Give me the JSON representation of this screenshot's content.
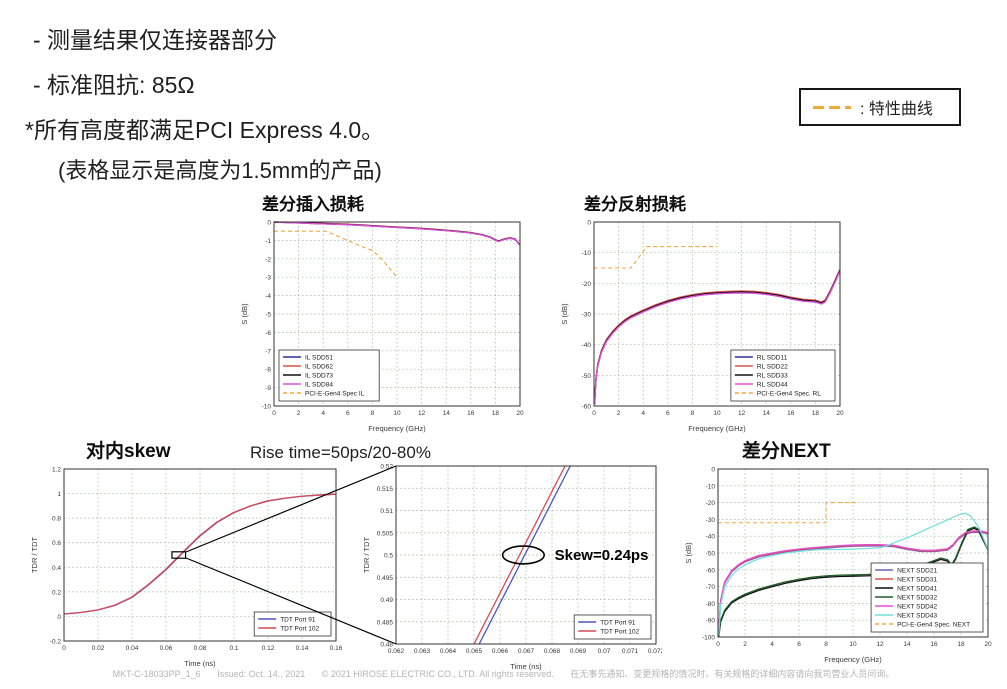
{
  "page": {
    "bullets": [
      "- 测量结果仅连接器部分",
      "- 标准阻抗: 85Ω",
      "*所有高度都满足PCI Express 4.0。",
      "(表格显示是高度为1.5mm的产品)"
    ]
  },
  "spec_legend": {
    "label": ": 特性曲线",
    "color": "#f0a73c"
  },
  "labels": {
    "rise_time": "Rise time=50ps/20-80%"
  },
  "footer": {
    "doc_id": "MKT-C-18033PP_1_6",
    "issued": "Issued: Oct. 14., 2021",
    "copyright": "© 2021 HIROSE ELECTRIC CO., LTD. All rights reserved.",
    "note_cn": "在无事先通知、变更规格的情况时、有关规格的详细内容请向我司营业人员问询。"
  },
  "chart_data": [
    {
      "id": "insertion-loss",
      "type": "line",
      "title": "差分插入损耗",
      "xlabel": "Frequency (GHz)",
      "ylabel": "S (dB)",
      "xlim": [
        0,
        20
      ],
      "ylim": [
        -10,
        0
      ],
      "xticks": [
        0,
        2,
        4,
        6,
        8,
        10,
        12,
        14,
        16,
        18,
        20
      ],
      "yticks": [
        0,
        -1,
        -2,
        -3,
        -4,
        -5,
        -6,
        -7,
        -8,
        -9,
        -10
      ],
      "grid": true,
      "legend_pos": "bl",
      "series": [
        {
          "name": "IL SDD51",
          "color": "#28318f",
          "points": [
            [
              0,
              0
            ],
            [
              1,
              -0.03
            ],
            [
              2,
              -0.05
            ],
            [
              3,
              -0.08
            ],
            [
              4,
              -0.1
            ],
            [
              5,
              -0.12
            ],
            [
              6,
              -0.15
            ],
            [
              7,
              -0.18
            ],
            [
              8,
              -0.22
            ],
            [
              9,
              -0.26
            ],
            [
              10,
              -0.3
            ],
            [
              11,
              -0.33
            ],
            [
              12,
              -0.37
            ],
            [
              13,
              -0.42
            ],
            [
              14,
              -0.47
            ],
            [
              15,
              -0.53
            ],
            [
              16,
              -0.6
            ],
            [
              17,
              -0.72
            ],
            [
              17.6,
              -0.85
            ],
            [
              18,
              -1.0
            ],
            [
              18.3,
              -1.05
            ],
            [
              18.7,
              -0.95
            ],
            [
              19.2,
              -0.88
            ],
            [
              19.6,
              -0.95
            ],
            [
              20,
              -1.27
            ]
          ]
        },
        {
          "name": "IL SDD62",
          "color": "#d9534a",
          "same_as": "IL SDD51",
          "dy": 0.03
        },
        {
          "name": "IL SDD73",
          "color": "#111111",
          "same_as": "IL SDD51",
          "dy": 0.015
        },
        {
          "name": "IL SDD84",
          "color": "#e04fd8",
          "same_as": "IL SDD51",
          "dy": 0
        },
        {
          "name": "PCI-E-Gen4 Spec IL",
          "color": "#f0a73c",
          "dash": "4,3",
          "points": [
            [
              0,
              -0.5
            ],
            [
              4.2,
              -0.5
            ],
            [
              5,
              -0.72
            ],
            [
              6,
              -1.0
            ],
            [
              7,
              -1.3
            ],
            [
              8,
              -1.55
            ],
            [
              8.5,
              -1.85
            ],
            [
              9,
              -2.2
            ],
            [
              9.5,
              -2.6
            ],
            [
              10,
              -3.0
            ]
          ]
        }
      ]
    },
    {
      "id": "return-loss",
      "type": "line",
      "title": "差分反射损耗",
      "xlabel": "Frequency (GHz)",
      "ylabel": "S (dB)",
      "xlim": [
        0,
        20
      ],
      "ylim": [
        -60,
        0
      ],
      "xticks": [
        0,
        2,
        4,
        6,
        8,
        10,
        12,
        14,
        16,
        18,
        20
      ],
      "yticks": [
        0,
        -10,
        -20,
        -30,
        -40,
        -50,
        -60
      ],
      "grid": true,
      "legend_pos": "br",
      "series": [
        {
          "name": "RL SDD11",
          "color": "#28318f",
          "points": [
            [
              0.05,
              -59.5
            ],
            [
              0.15,
              -52
            ],
            [
              0.3,
              -47
            ],
            [
              0.6,
              -42.5
            ],
            [
              1,
              -39
            ],
            [
              1.5,
              -36.3
            ],
            [
              2,
              -34.2
            ],
            [
              2.5,
              -32.5
            ],
            [
              3,
              -31.2
            ],
            [
              4,
              -29.3
            ],
            [
              5,
              -27.6
            ],
            [
              6,
              -26.2
            ],
            [
              7,
              -25.1
            ],
            [
              8,
              -24.3
            ],
            [
              9,
              -23.7
            ],
            [
              10,
              -23.4
            ],
            [
              11,
              -23.2
            ],
            [
              12,
              -23.1
            ],
            [
              13,
              -23.2
            ],
            [
              14,
              -23.6
            ],
            [
              15,
              -24.2
            ],
            [
              16,
              -25.1
            ],
            [
              17,
              -25.8
            ],
            [
              18,
              -26.1
            ],
            [
              18.5,
              -26.7
            ],
            [
              18.8,
              -26
            ],
            [
              19.2,
              -23
            ],
            [
              19.6,
              -19.5
            ],
            [
              20,
              -16
            ]
          ]
        },
        {
          "name": "RL SDD22",
          "color": "#d9534a",
          "same_as": "RL SDD11",
          "dy": 0.6
        },
        {
          "name": "RL SDD33",
          "color": "#111111",
          "same_as": "RL SDD11",
          "dy": 0.3
        },
        {
          "name": "RL SDD44",
          "color": "#e04fd8",
          "same_as": "RL SDD11",
          "dy": 0
        },
        {
          "name": "PCI-E-Gen4 Spec. RL",
          "color": "#f0a73c",
          "dash": "4,3",
          "points": [
            [
              0,
              -15
            ],
            [
              3,
              -15
            ],
            [
              4.3,
              -8
            ],
            [
              10,
              -8
            ]
          ]
        }
      ]
    },
    {
      "id": "intra-pair-skew",
      "type": "line",
      "title": "对内skew",
      "xlabel": "Time (ns)",
      "ylabel": "TDR / TDT",
      "xlim": [
        0,
        0.16
      ],
      "ylim": [
        -0.2,
        1.2
      ],
      "xticks": [
        0,
        0.02,
        0.04,
        0.06,
        0.08,
        0.1,
        0.12,
        0.14,
        0.16
      ],
      "yticks": [
        -0.2,
        0,
        0.2,
        0.4,
        0.6,
        0.8,
        1,
        1.2
      ],
      "grid": true,
      "legend_pos": "br",
      "series": [
        {
          "name": "TDT Port 91",
          "color": "#4a55c2",
          "points": [
            [
              0,
              0.02
            ],
            [
              0.01,
              0.032
            ],
            [
              0.02,
              0.052
            ],
            [
              0.03,
              0.09
            ],
            [
              0.04,
              0.155
            ],
            [
              0.05,
              0.26
            ],
            [
              0.06,
              0.38
            ],
            [
              0.065,
              0.45
            ],
            [
              0.07,
              0.52
            ],
            [
              0.08,
              0.655
            ],
            [
              0.09,
              0.765
            ],
            [
              0.1,
              0.845
            ],
            [
              0.11,
              0.9
            ],
            [
              0.12,
              0.94
            ],
            [
              0.13,
              0.962
            ],
            [
              0.14,
              0.978
            ],
            [
              0.15,
              0.988
            ],
            [
              0.16,
              0.995
            ]
          ]
        },
        {
          "name": "TDT Port 102",
          "color": "#d64a56",
          "same_as": "TDT Port 91",
          "dx": -0.0004
        }
      ],
      "ann": [
        {
          "type": "rect",
          "x": [
            0.0635,
            0.0715
          ],
          "y": [
            0.474,
            0.526
          ]
        }
      ]
    },
    {
      "id": "skew-zoom",
      "type": "line",
      "title": "",
      "xlabel": "Time (ns)",
      "ylabel": "TDR / TDT",
      "xlim": [
        0.062,
        0.072
      ],
      "ylim": [
        0.48,
        0.52
      ],
      "xticks": [
        0.062,
        0.063,
        0.064,
        0.065,
        0.066,
        0.067,
        0.068,
        0.069,
        0.07,
        0.071,
        0.072
      ],
      "yticks": [
        0.48,
        0.485,
        0.49,
        0.495,
        0.5,
        0.505,
        0.51,
        0.515,
        0.52
      ],
      "grid": true,
      "legend_pos": "br",
      "series": [
        {
          "name": "TDT Port 91",
          "color": "#4a55c2",
          "points": [
            [
              0.0652,
              0.48
            ],
            [
              0.0687,
              0.52
            ]
          ]
        },
        {
          "name": "TDT Port 102",
          "color": "#d64a56",
          "points": [
            [
              0.065,
              0.48
            ],
            [
              0.0685,
              0.52
            ]
          ]
        }
      ],
      "ann": [
        {
          "type": "ellipse",
          "cx": 0.0669,
          "cy": 0.5,
          "rx": 0.0008,
          "ry": 0.002
        },
        {
          "type": "text",
          "x": 0.0681,
          "y": 0.5,
          "text": "Skew=0.24ps",
          "size": 15,
          "bold": true
        }
      ]
    },
    {
      "id": "next",
      "type": "line",
      "title": "差分NEXT",
      "xlabel": "Frequency (GHz)",
      "ylabel": "S (dB)",
      "xlim": [
        0,
        20
      ],
      "ylim": [
        -100,
        0
      ],
      "xticks": [
        0,
        2,
        4,
        6,
        8,
        10,
        12,
        14,
        16,
        18,
        20
      ],
      "yticks": [
        0,
        -10,
        -20,
        -30,
        -40,
        -50,
        -60,
        -70,
        -80,
        -90,
        -100
      ],
      "grid": true,
      "legend_pos": "br",
      "series": [
        {
          "name": "NEXT SDD21",
          "color": "#6f5fc0",
          "same_as": "NEXT SDD42",
          "dy": -0.8
        },
        {
          "name": "NEXT SDD31",
          "color": "#d9534a",
          "same_as": "NEXT SDD42",
          "dy": -0.4
        },
        {
          "name": "NEXT SDD41",
          "color": "#111111",
          "same_as": "NEXT SDD32",
          "dy": -0.8
        },
        {
          "name": "NEXT SDD32",
          "color": "#1e5c28",
          "points": [
            [
              0.05,
              -100
            ],
            [
              0.2,
              -90
            ],
            [
              0.5,
              -84
            ],
            [
              1,
              -79
            ],
            [
              1.5,
              -76.5
            ],
            [
              2,
              -74.5
            ],
            [
              3,
              -71.5
            ],
            [
              4,
              -69.3
            ],
            [
              5,
              -67.2
            ],
            [
              6,
              -65.6
            ],
            [
              7,
              -64.4
            ],
            [
              8,
              -63.6
            ],
            [
              9,
              -63.2
            ],
            [
              10,
              -63
            ],
            [
              11,
              -62.8
            ],
            [
              12,
              -62.5
            ],
            [
              13,
              -62
            ],
            [
              13.5,
              -61.5
            ],
            [
              14,
              -60.8
            ],
            [
              15,
              -57.5
            ],
            [
              16,
              -54.5
            ],
            [
              16.5,
              -53
            ],
            [
              17,
              -54
            ],
            [
              17.3,
              -56.8
            ],
            [
              17.6,
              -53
            ],
            [
              18,
              -45
            ],
            [
              18.5,
              -36
            ],
            [
              19,
              -34.5
            ],
            [
              19.3,
              -36
            ],
            [
              19.6,
              -41
            ],
            [
              20,
              -47.5
            ]
          ]
        },
        {
          "name": "NEXT SDD42",
          "color": "#e04fd8",
          "points": [
            [
              0.05,
              -97
            ],
            [
              0.2,
              -78
            ],
            [
              0.5,
              -67
            ],
            [
              1,
              -60.5
            ],
            [
              1.5,
              -57
            ],
            [
              2,
              -54.5
            ],
            [
              3,
              -51.5
            ],
            [
              4,
              -50
            ],
            [
              5,
              -48.6
            ],
            [
              6,
              -47.6
            ],
            [
              7,
              -46.8
            ],
            [
              8,
              -46.2
            ],
            [
              9,
              -45.6
            ],
            [
              10,
              -45.2
            ],
            [
              11,
              -45
            ],
            [
              12,
              -45
            ],
            [
              13,
              -45.4
            ],
            [
              14,
              -47
            ],
            [
              15,
              -48.3
            ],
            [
              16,
              -48.4
            ],
            [
              17,
              -47.5
            ],
            [
              17.4,
              -45
            ],
            [
              17.8,
              -41
            ],
            [
              18.3,
              -38
            ],
            [
              18.8,
              -37
            ],
            [
              19.3,
              -36.8
            ],
            [
              19.7,
              -37.2
            ],
            [
              20,
              -38
            ]
          ]
        },
        {
          "name": "NEXT SDD43",
          "color": "#78dedb",
          "points": [
            [
              0.05,
              -99
            ],
            [
              0.2,
              -81
            ],
            [
              0.5,
              -70
            ],
            [
              1,
              -63.5
            ],
            [
              1.5,
              -59.5
            ],
            [
              2,
              -57
            ],
            [
              3,
              -53.5
            ],
            [
              4,
              -51.5
            ],
            [
              5,
              -50
            ],
            [
              6,
              -49
            ],
            [
              7,
              -48.3
            ],
            [
              8,
              -47.8
            ],
            [
              9,
              -48
            ],
            [
              10,
              -47.6
            ],
            [
              11,
              -47.4
            ],
            [
              12,
              -46.8
            ],
            [
              12.5,
              -45.8
            ],
            [
              13,
              -44
            ],
            [
              14,
              -41
            ],
            [
              15,
              -37.5
            ],
            [
              16,
              -33.8
            ],
            [
              17,
              -30.3
            ],
            [
              17.6,
              -28
            ],
            [
              18,
              -26.8
            ],
            [
              18.3,
              -26.3
            ],
            [
              18.7,
              -28
            ],
            [
              19,
              -31
            ],
            [
              19.4,
              -36
            ],
            [
              19.7,
              -42
            ],
            [
              20,
              -48
            ]
          ]
        },
        {
          "name": "PCI-E-Gen4 Spec. NEXT",
          "color": "#f0a73c",
          "dash": "4,3",
          "points": [
            [
              0,
              -32
            ],
            [
              8,
              -32
            ],
            [
              8,
              -20
            ],
            [
              10.3,
              -20
            ]
          ]
        }
      ]
    }
  ]
}
